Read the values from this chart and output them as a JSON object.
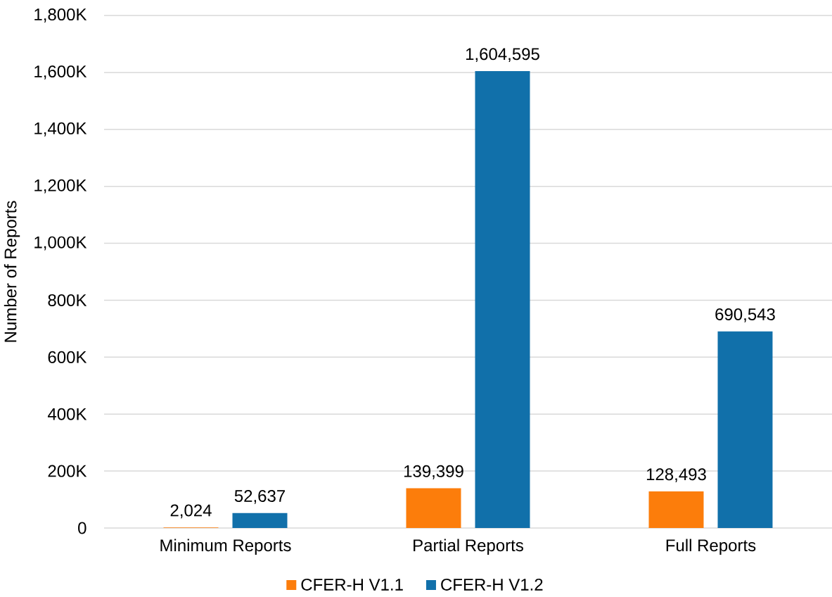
{
  "chart_data": {
    "type": "bar",
    "ylabel": "Number of Reports",
    "categories": [
      "Minimum Reports",
      "Partial Reports",
      "Full Reports"
    ],
    "series": [
      {
        "name": "CFER-H V1.1",
        "color": "#fc7d0b",
        "values": [
          2024,
          139399,
          128493
        ],
        "value_labels": [
          "2,024",
          "139,399",
          "128,493"
        ]
      },
      {
        "name": "CFER-H V1.2",
        "color": "#1170aa",
        "values": [
          52637,
          1604595,
          690543
        ],
        "value_labels": [
          "52,637",
          "1,604,595",
          "690,543"
        ]
      }
    ],
    "ylim": [
      0,
      1800000
    ],
    "yticks": [
      0,
      {
        "value": 200000,
        "label": "200K"
      },
      {
        "value": 400000,
        "label": "400K"
      },
      {
        "value": 600000,
        "label": "600K"
      },
      {
        "value": 800000,
        "label": "800K"
      },
      {
        "value": 1000000,
        "label": "1,000K"
      },
      {
        "value": 1200000,
        "label": "1,200K"
      },
      {
        "value": 1400000,
        "label": "1,400K"
      },
      {
        "value": 1600000,
        "label": "1,600K"
      },
      {
        "value": 1800000,
        "label": "1,800K"
      }
    ],
    "grid": "y",
    "legend": "bottom"
  }
}
